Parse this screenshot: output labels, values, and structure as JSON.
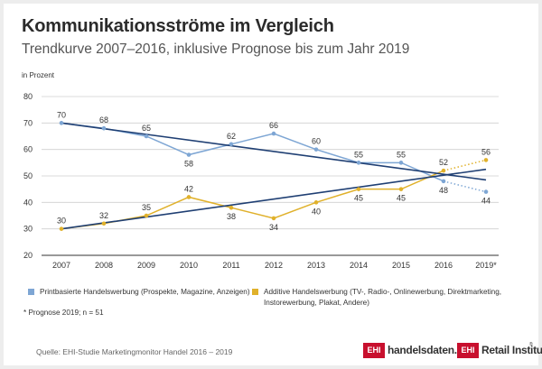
{
  "header": {
    "title": "Kommunikationsströme im Vergleich",
    "subtitle": "Trendkurve 2007–2016, inklusive Prognose bis zum Jahr 2019",
    "unit": "in Prozent"
  },
  "chart_data": {
    "type": "line",
    "categories": [
      "2007",
      "2008",
      "2009",
      "2010",
      "2011",
      "2012",
      "2013",
      "2014",
      "2015",
      "2016",
      "2019*"
    ],
    "ylim": [
      20,
      80
    ],
    "yticks": [
      20,
      30,
      40,
      50,
      60,
      70,
      80
    ],
    "grid": true,
    "series": [
      {
        "name": "Printbasierte Handelswerbung (Prospekte, Magazine, Anzeigen)",
        "color": "#7ea6d4",
        "values": [
          70,
          68,
          65,
          58,
          62,
          66,
          60,
          55,
          55,
          48,
          44
        ],
        "forecast_from_index": 9,
        "trend": [
          70,
          48.5
        ]
      },
      {
        "name": "Additive Handelswerbung (TV-, Radio-, Onlinewerbung, Direktmarketing, Instorewerbung, Plakat, Andere)",
        "color": "#e0b12b",
        "values": [
          30,
          32,
          35,
          42,
          38,
          34,
          40,
          45,
          45,
          52,
          56
        ],
        "forecast_from_index": 9,
        "trend": [
          30,
          52.5
        ]
      }
    ],
    "trend_color": "#1f3f73"
  },
  "legend": {
    "print_label": "Printbasierte Handelswerbung (Prospekte, Magazine, Anzeigen)",
    "additive_label_line1": "Additive Handelswerbung (TV-, Radio-, Onlinewerbung, Direktmarketing,",
    "additive_label_line2": "Instorewerbung, Plakat, Andere)"
  },
  "note": "* Prognose 2019; n = 51",
  "source": "Quelle: EHI-Studie Marketingmonitor Handel 2016 – 2019",
  "logos": {
    "ehi1_box": "EHI",
    "ehi1_text": "handelsdaten.de",
    "ehi2_box": "EHI",
    "ehi2_text": "Retail Institute",
    "reg_mark": "®"
  }
}
